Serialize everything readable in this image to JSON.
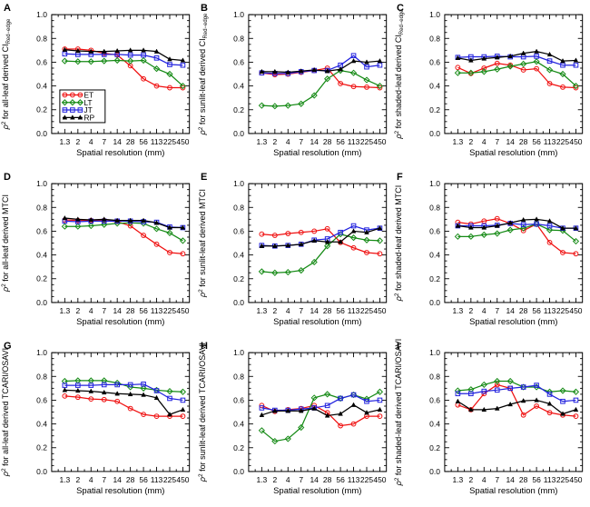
{
  "figure": {
    "background": "#ffffff",
    "x_axis": {
      "label": "Spatial resolution (mm)",
      "categories": [
        "1.3",
        "2",
        "4",
        "7",
        "14",
        "28",
        "56",
        "113",
        "225",
        "450"
      ]
    },
    "y_axis": {
      "min": 0.0,
      "max": 1.0,
      "major_ticks": [
        "0.0",
        "0.2",
        "0.4",
        "0.6",
        "0.8",
        "1.0"
      ],
      "minor_step": 0.05,
      "grid": false
    },
    "legend": {
      "position": "inside panel A, left-middle",
      "entries": [
        {
          "name": "ET",
          "color": "#ef1010",
          "marker": "circle"
        },
        {
          "name": "LT",
          "color": "#158a15",
          "marker": "diamond"
        },
        {
          "name": "JT",
          "color": "#2121de",
          "marker": "square"
        },
        {
          "name": "RP",
          "color": "#000000",
          "marker": "triangle"
        }
      ]
    }
  },
  "chart_data": [
    {
      "type": "line",
      "panel": "A",
      "ylabel": {
        "rho": "ρ",
        "sup": "2",
        "rest": " for all-leaf derived ",
        "metric": "CI",
        "metric_sub": "Red−edge"
      },
      "show_legend": true,
      "series": [
        {
          "name": "ET",
          "color": "#ef1010",
          "marker": "circle",
          "values": [
            0.71,
            0.71,
            0.7,
            0.675,
            0.66,
            0.57,
            0.46,
            0.4,
            0.385,
            0.385
          ]
        },
        {
          "name": "LT",
          "color": "#158a15",
          "marker": "diamond",
          "values": [
            0.61,
            0.605,
            0.605,
            0.61,
            0.615,
            0.61,
            0.615,
            0.545,
            0.5,
            0.4
          ]
        },
        {
          "name": "JT",
          "color": "#2121de",
          "marker": "square",
          "values": [
            0.67,
            0.665,
            0.665,
            0.665,
            0.665,
            0.66,
            0.66,
            0.635,
            0.58,
            0.575
          ]
        },
        {
          "name": "RP",
          "color": "#000000",
          "marker": "triangle",
          "values": [
            0.705,
            0.695,
            0.69,
            0.69,
            0.695,
            0.7,
            0.7,
            0.69,
            0.625,
            0.615
          ]
        }
      ]
    },
    {
      "type": "line",
      "panel": "B",
      "ylabel": {
        "rho": "ρ",
        "sup": "2",
        "rest": " for sunlit-leaf derived ",
        "metric": "CI",
        "metric_sub": "Red−edge"
      },
      "show_legend": false,
      "series": [
        {
          "name": "ET",
          "color": "#ef1010",
          "marker": "circle",
          "values": [
            0.51,
            0.495,
            0.5,
            0.515,
            0.53,
            0.55,
            0.42,
            0.395,
            0.39,
            0.385
          ]
        },
        {
          "name": "LT",
          "color": "#158a15",
          "marker": "diamond",
          "values": [
            0.235,
            0.23,
            0.235,
            0.25,
            0.32,
            0.46,
            0.53,
            0.51,
            0.45,
            0.4
          ]
        },
        {
          "name": "JT",
          "color": "#2121de",
          "marker": "square",
          "values": [
            0.51,
            0.505,
            0.505,
            0.52,
            0.53,
            0.53,
            0.575,
            0.655,
            0.56,
            0.575
          ]
        },
        {
          "name": "RP",
          "color": "#000000",
          "marker": "triangle",
          "values": [
            0.52,
            0.52,
            0.515,
            0.525,
            0.535,
            0.525,
            0.54,
            0.61,
            0.6,
            0.61
          ]
        }
      ]
    },
    {
      "type": "line",
      "panel": "C",
      "ylabel": {
        "rho": "ρ",
        "sup": "2",
        "rest": " for shaded-leaf derived ",
        "metric": "CI",
        "metric_sub": "Red−edge"
      },
      "show_legend": false,
      "series": [
        {
          "name": "ET",
          "color": "#ef1010",
          "marker": "circle",
          "values": [
            0.555,
            0.505,
            0.55,
            0.59,
            0.575,
            0.535,
            0.545,
            0.42,
            0.39,
            0.385
          ]
        },
        {
          "name": "LT",
          "color": "#158a15",
          "marker": "diamond",
          "values": [
            0.51,
            0.51,
            0.52,
            0.54,
            0.565,
            0.585,
            0.605,
            0.535,
            0.5,
            0.4
          ]
        },
        {
          "name": "JT",
          "color": "#2121de",
          "marker": "square",
          "values": [
            0.64,
            0.645,
            0.645,
            0.65,
            0.645,
            0.645,
            0.65,
            0.61,
            0.575,
            0.575
          ]
        },
        {
          "name": "RP",
          "color": "#000000",
          "marker": "triangle",
          "values": [
            0.635,
            0.615,
            0.63,
            0.64,
            0.65,
            0.675,
            0.69,
            0.665,
            0.61,
            0.615
          ]
        }
      ]
    },
    {
      "type": "line",
      "panel": "D",
      "ylabel": {
        "rho": "ρ",
        "sup": "2",
        "rest": " for all-leaf derived ",
        "metric": "MTCI",
        "metric_sub": ""
      },
      "show_legend": false,
      "series": [
        {
          "name": "ET",
          "color": "#ef1010",
          "marker": "circle",
          "values": [
            0.695,
            0.69,
            0.69,
            0.69,
            0.68,
            0.645,
            0.565,
            0.49,
            0.42,
            0.41
          ]
        },
        {
          "name": "LT",
          "color": "#158a15",
          "marker": "diamond",
          "values": [
            0.64,
            0.64,
            0.645,
            0.655,
            0.665,
            0.67,
            0.665,
            0.62,
            0.585,
            0.52
          ]
        },
        {
          "name": "JT",
          "color": "#2121de",
          "marker": "square",
          "values": [
            0.685,
            0.68,
            0.685,
            0.685,
            0.685,
            0.685,
            0.68,
            0.675,
            0.635,
            0.63
          ]
        },
        {
          "name": "RP",
          "color": "#000000",
          "marker": "triangle",
          "values": [
            0.71,
            0.7,
            0.695,
            0.7,
            0.69,
            0.69,
            0.69,
            0.67,
            0.63,
            0.63
          ]
        }
      ]
    },
    {
      "type": "line",
      "panel": "E",
      "ylabel": {
        "rho": "ρ",
        "sup": "2",
        "rest": " for sunlit-leaf derived ",
        "metric": "MTCI",
        "metric_sub": ""
      },
      "show_legend": false,
      "series": [
        {
          "name": "ET",
          "color": "#ef1010",
          "marker": "circle",
          "values": [
            0.575,
            0.565,
            0.58,
            0.59,
            0.6,
            0.62,
            0.505,
            0.46,
            0.42,
            0.41
          ]
        },
        {
          "name": "LT",
          "color": "#158a15",
          "marker": "diamond",
          "values": [
            0.26,
            0.25,
            0.255,
            0.27,
            0.34,
            0.475,
            0.575,
            0.545,
            0.525,
            0.52
          ]
        },
        {
          "name": "JT",
          "color": "#2121de",
          "marker": "square",
          "values": [
            0.48,
            0.475,
            0.48,
            0.49,
            0.525,
            0.535,
            0.59,
            0.645,
            0.61,
            0.625
          ]
        },
        {
          "name": "RP",
          "color": "#000000",
          "marker": "triangle",
          "values": [
            0.475,
            0.475,
            0.48,
            0.49,
            0.52,
            0.51,
            0.51,
            0.6,
            0.59,
            0.625
          ]
        }
      ]
    },
    {
      "type": "line",
      "panel": "F",
      "ylabel": {
        "rho": "ρ",
        "sup": "2",
        "rest": " for shaded-leaf derived ",
        "metric": "MTCI",
        "metric_sub": ""
      },
      "show_legend": false,
      "series": [
        {
          "name": "ET",
          "color": "#ef1010",
          "marker": "circle",
          "values": [
            0.675,
            0.66,
            0.685,
            0.705,
            0.665,
            0.605,
            0.66,
            0.505,
            0.42,
            0.41
          ]
        },
        {
          "name": "LT",
          "color": "#158a15",
          "marker": "diamond",
          "values": [
            0.555,
            0.555,
            0.57,
            0.58,
            0.61,
            0.625,
            0.66,
            0.61,
            0.605,
            0.515
          ]
        },
        {
          "name": "JT",
          "color": "#2121de",
          "marker": "square",
          "values": [
            0.645,
            0.645,
            0.645,
            0.65,
            0.665,
            0.655,
            0.66,
            0.645,
            0.625,
            0.625
          ]
        },
        {
          "name": "RP",
          "color": "#000000",
          "marker": "triangle",
          "values": [
            0.645,
            0.63,
            0.63,
            0.645,
            0.67,
            0.695,
            0.7,
            0.685,
            0.625,
            0.625
          ]
        }
      ]
    },
    {
      "type": "line",
      "panel": "G",
      "ylabel": {
        "rho": "ρ",
        "sup": "2",
        "rest": " for all-leaf derived ",
        "metric": "TCARI/OSAVI",
        "metric_sub": ""
      },
      "show_legend": false,
      "series": [
        {
          "name": "ET",
          "color": "#ef1010",
          "marker": "circle",
          "values": [
            0.635,
            0.625,
            0.61,
            0.605,
            0.59,
            0.53,
            0.48,
            0.465,
            0.465,
            0.465
          ]
        },
        {
          "name": "LT",
          "color": "#158a15",
          "marker": "diamond",
          "values": [
            0.76,
            0.765,
            0.765,
            0.765,
            0.745,
            0.71,
            0.7,
            0.685,
            0.675,
            0.67
          ]
        },
        {
          "name": "JT",
          "color": "#2121de",
          "marker": "square",
          "values": [
            0.725,
            0.725,
            0.725,
            0.73,
            0.73,
            0.73,
            0.735,
            0.68,
            0.615,
            0.6
          ]
        },
        {
          "name": "RP",
          "color": "#000000",
          "marker": "triangle",
          "values": [
            0.685,
            0.68,
            0.675,
            0.665,
            0.655,
            0.65,
            0.645,
            0.62,
            0.48,
            0.52
          ]
        }
      ]
    },
    {
      "type": "line",
      "panel": "H",
      "ylabel": {
        "rho": "ρ",
        "sup": "2",
        "rest": " for sunlit-leaf derived ",
        "metric": "TCARI/OSAVI",
        "metric_sub": ""
      },
      "show_legend": false,
      "series": [
        {
          "name": "ET",
          "color": "#ef1010",
          "marker": "circle",
          "values": [
            0.555,
            0.505,
            0.52,
            0.53,
            0.555,
            0.495,
            0.385,
            0.4,
            0.465,
            0.465
          ]
        },
        {
          "name": "LT",
          "color": "#158a15",
          "marker": "diamond",
          "values": [
            0.345,
            0.255,
            0.275,
            0.37,
            0.62,
            0.65,
            0.615,
            0.645,
            0.61,
            0.67
          ]
        },
        {
          "name": "JT",
          "color": "#2121de",
          "marker": "square",
          "values": [
            0.535,
            0.515,
            0.515,
            0.525,
            0.535,
            0.555,
            0.615,
            0.645,
            0.59,
            0.6
          ]
        },
        {
          "name": "RP",
          "color": "#000000",
          "marker": "triangle",
          "values": [
            0.475,
            0.51,
            0.51,
            0.51,
            0.53,
            0.47,
            0.485,
            0.56,
            0.495,
            0.52
          ]
        }
      ]
    },
    {
      "type": "line",
      "panel": "I",
      "ylabel": {
        "rho": "ρ",
        "sup": "2",
        "rest": " for shaded-leaf derived ",
        "metric": "TCARI/OSAVI",
        "metric_sub": ""
      },
      "show_legend": false,
      "series": [
        {
          "name": "ET",
          "color": "#ef1010",
          "marker": "circle",
          "values": [
            0.56,
            0.52,
            0.655,
            0.73,
            0.7,
            0.475,
            0.55,
            0.495,
            0.475,
            0.465
          ]
        },
        {
          "name": "LT",
          "color": "#158a15",
          "marker": "diamond",
          "values": [
            0.68,
            0.69,
            0.73,
            0.76,
            0.76,
            0.71,
            0.71,
            0.67,
            0.68,
            0.67
          ]
        },
        {
          "name": "JT",
          "color": "#2121de",
          "marker": "square",
          "values": [
            0.655,
            0.655,
            0.675,
            0.685,
            0.7,
            0.71,
            0.725,
            0.65,
            0.59,
            0.6
          ]
        },
        {
          "name": "RP",
          "color": "#000000",
          "marker": "triangle",
          "values": [
            0.59,
            0.52,
            0.52,
            0.53,
            0.565,
            0.595,
            0.6,
            0.57,
            0.485,
            0.52
          ]
        }
      ]
    }
  ]
}
